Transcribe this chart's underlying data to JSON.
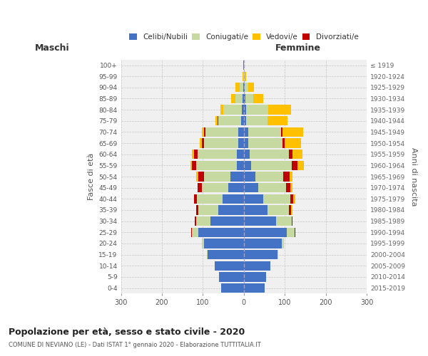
{
  "age_groups": [
    "0-4",
    "5-9",
    "10-14",
    "15-19",
    "20-24",
    "25-29",
    "30-34",
    "35-39",
    "40-44",
    "45-49",
    "50-54",
    "55-59",
    "60-64",
    "65-69",
    "70-74",
    "75-79",
    "80-84",
    "85-89",
    "90-94",
    "95-99",
    "100+"
  ],
  "birth_years": [
    "2015-2019",
    "2010-2014",
    "2005-2009",
    "2000-2004",
    "1995-1999",
    "1990-1994",
    "1985-1989",
    "1980-1984",
    "1975-1979",
    "1970-1974",
    "1965-1969",
    "1960-1964",
    "1955-1959",
    "1950-1954",
    "1945-1949",
    "1940-1944",
    "1935-1939",
    "1930-1934",
    "1925-1929",
    "1920-1924",
    "≤ 1919"
  ],
  "male": {
    "celibi": [
      55,
      60,
      72,
      88,
      98,
      112,
      82,
      62,
      52,
      38,
      32,
      18,
      18,
      13,
      13,
      7,
      5,
      3,
      2,
      0,
      1
    ],
    "coniugati": [
      0,
      0,
      0,
      2,
      5,
      15,
      35,
      50,
      62,
      65,
      65,
      98,
      95,
      85,
      80,
      55,
      45,
      18,
      8,
      1,
      0
    ],
    "divorziati": [
      0,
      0,
      0,
      0,
      0,
      2,
      3,
      5,
      8,
      10,
      15,
      10,
      8,
      5,
      4,
      3,
      0,
      0,
      0,
      0,
      0
    ],
    "vedovi": [
      0,
      0,
      0,
      0,
      0,
      0,
      0,
      0,
      0,
      0,
      5,
      5,
      5,
      5,
      5,
      5,
      8,
      10,
      10,
      2,
      0
    ]
  },
  "female": {
    "nubili": [
      50,
      55,
      65,
      82,
      92,
      105,
      78,
      58,
      48,
      35,
      28,
      18,
      15,
      10,
      10,
      5,
      5,
      3,
      2,
      0,
      0
    ],
    "coniugate": [
      0,
      0,
      0,
      2,
      5,
      18,
      38,
      52,
      65,
      68,
      68,
      98,
      95,
      85,
      80,
      52,
      55,
      20,
      8,
      2,
      0
    ],
    "divorziate": [
      0,
      0,
      0,
      0,
      0,
      2,
      3,
      5,
      8,
      10,
      15,
      15,
      8,
      5,
      5,
      0,
      0,
      0,
      0,
      0,
      0
    ],
    "vedove": [
      0,
      0,
      0,
      0,
      0,
      0,
      0,
      3,
      5,
      5,
      8,
      15,
      25,
      40,
      50,
      50,
      55,
      25,
      15,
      3,
      1
    ]
  },
  "colors": {
    "celibi": "#4472c4",
    "coniugati": "#c5d9a0",
    "vedovi": "#ffc000",
    "divorziati": "#c00000"
  },
  "title": "Popolazione per età, sesso e stato civile - 2020",
  "subtitle": "COMUNE DI NEVIANO (LE) - Dati ISTAT 1° gennaio 2020 - Elaborazione TUTTITALIA.IT",
  "xlabel_left": "Maschi",
  "xlabel_right": "Femmine",
  "ylabel_left": "Fasce di età",
  "ylabel_right": "Anni di nascita",
  "xlim": 300,
  "background_color": "#f0f0f0"
}
